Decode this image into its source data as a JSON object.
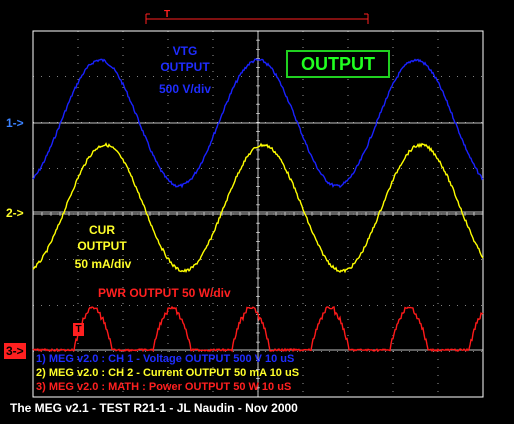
{
  "trigger_label": "T",
  "trace_labels": {
    "vtg_title": "VTG",
    "vtg_subtitle": "OUTPUT",
    "vtg_scale": "500 V/div",
    "cur_title": "CUR",
    "cur_subtitle": "OUTPUT",
    "cur_scale": "50 mA/div",
    "pwr_label": "PWR OUTPUT 50 W/div"
  },
  "output_badge": "OUTPUT",
  "channel_markers": [
    "1->",
    "2->",
    "3->"
  ],
  "markers_colors": [
    "#3b82ff",
    "#ffff2a",
    "#ff2020"
  ],
  "t_marker": "T",
  "legend": [
    {
      "text": "1) MEG v2.0 : CH 1 - Voltage OUTPUT 500 V 10 uS",
      "color": "#1f2dff"
    },
    {
      "text": "2) MEG v2.0 : CH 2 - Current OUTPUT 50 mA 10 uS",
      "color": "#ffff2a"
    },
    {
      "text": "3) MEG v2.0 : MATH : Power OUTPUT 50 W 10 uS",
      "color": "#ff2020"
    }
  ],
  "footer": "The MEG v2.1 - TEST R21-1 - JL Naudin - Nov 2000",
  "colors": {
    "voltage": "#1a22ff",
    "current": "#ffff00",
    "power": "#ff1a1a",
    "grid": "#ffffff",
    "background": "#000000"
  }
}
